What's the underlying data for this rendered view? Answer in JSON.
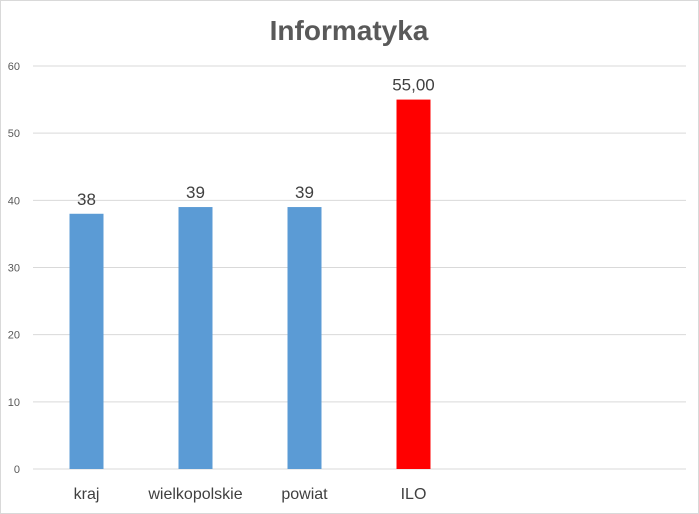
{
  "chart_data": {
    "type": "bar",
    "title": "Informatyka",
    "xlabel": "",
    "ylabel": "",
    "categories": [
      "kraj",
      "wielkopolskie",
      "powiat",
      "ILO"
    ],
    "values": [
      38,
      39,
      39,
      55
    ],
    "data_labels": [
      "38",
      "39",
      "39",
      "55,00"
    ],
    "bar_colors": [
      "#5b9bd5",
      "#5b9bd5",
      "#5b9bd5",
      "#ff0000"
    ],
    "ylim": [
      0,
      60
    ],
    "yticks": [
      0,
      10,
      20,
      30,
      40,
      50,
      60
    ],
    "grid": true,
    "legend": "none",
    "colors": {
      "gridline": "#d9d9d9",
      "axis_text": "#595959",
      "title": "#595959"
    }
  }
}
